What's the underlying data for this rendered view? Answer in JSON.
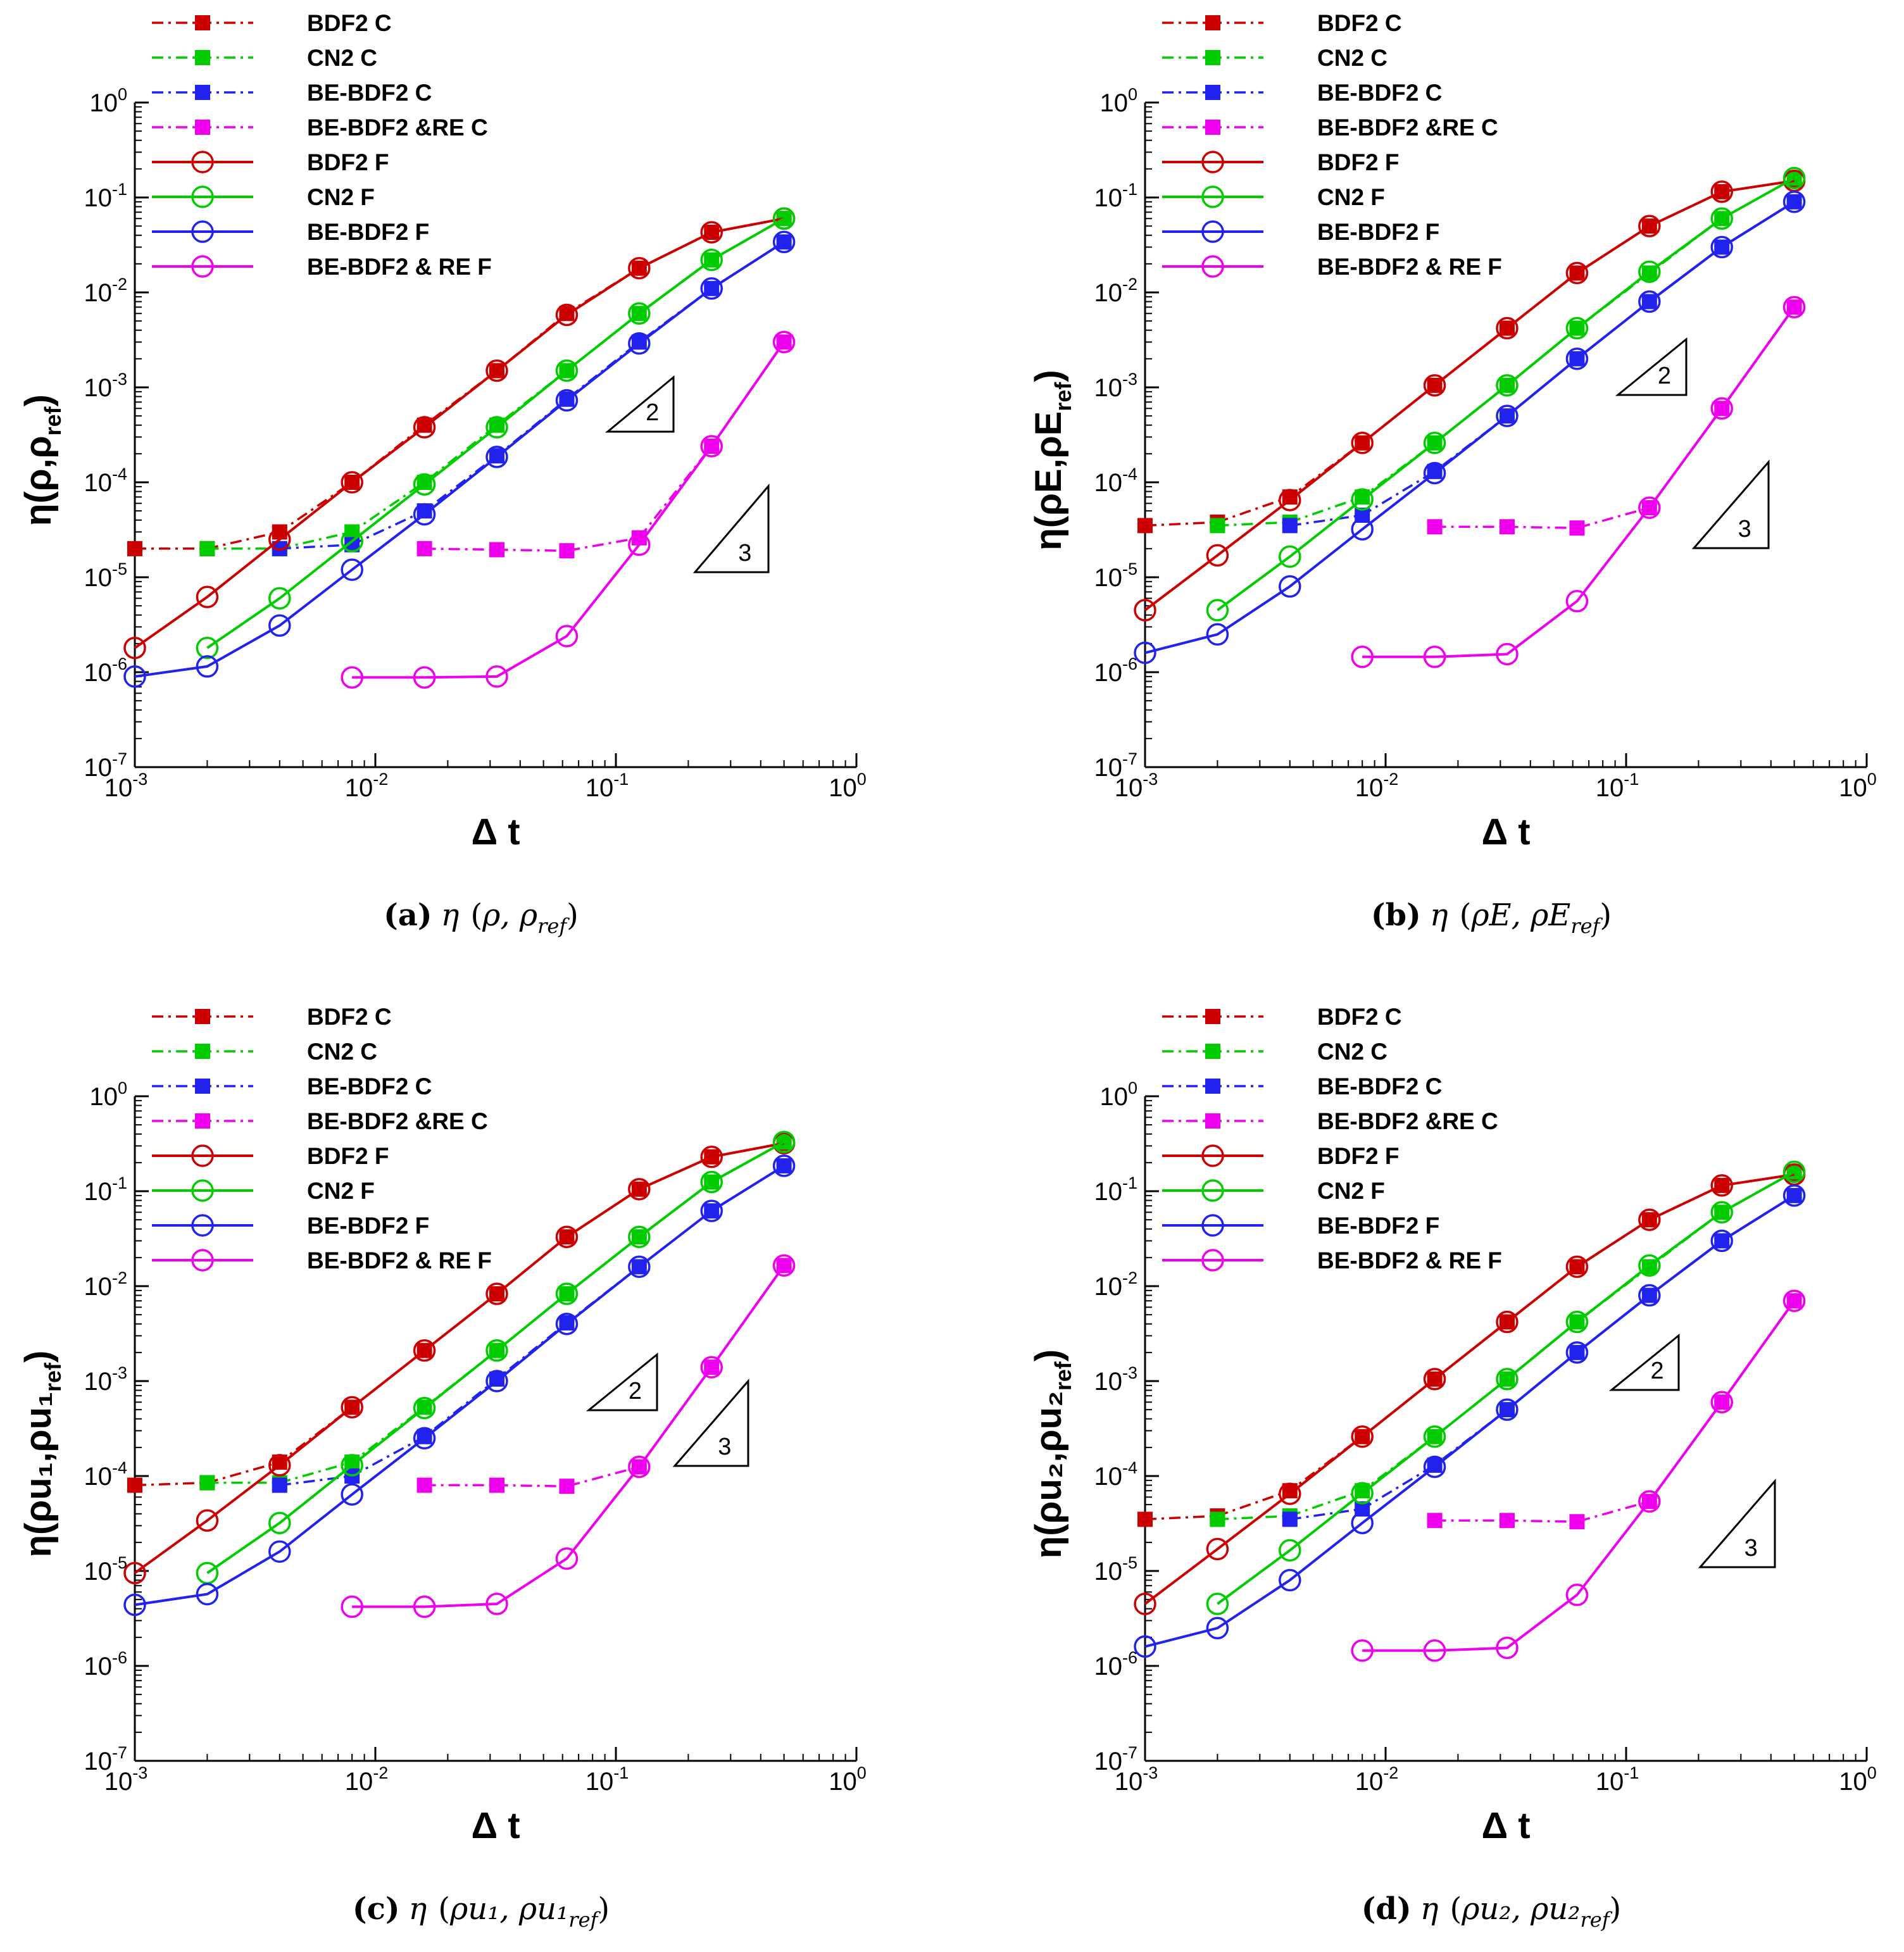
{
  "figure": {
    "legend_labels": [
      "BDF2 C",
      "CN2 C",
      "BE-BDF2 C",
      "BE-BDF2 &RE C",
      "BDF2 F",
      "CN2 F",
      "BE-BDF2 F",
      "BE-BDF2 & RE F"
    ],
    "xlabel": "Δ t",
    "x_tick_exponents": [
      "-3",
      "-2",
      "-1",
      "0"
    ],
    "y_tick_exponents": [
      "0",
      "-1",
      "-2",
      "-3",
      "-4",
      "-5",
      "-6",
      "-7"
    ],
    "tick_base": "10",
    "colors": {
      "BDF2": "#cc0000",
      "CN2": "#00cc00",
      "BE-BDF2": "#2222ee",
      "RE": "#ee00ee"
    }
  },
  "chart_data": [
    {
      "id": "a",
      "type": "line",
      "log_x": true,
      "log_y": true,
      "xlim": [
        0.001,
        1
      ],
      "ylim": [
        1e-07,
        1
      ],
      "caption_letter": "(a)",
      "caption_eta": "η",
      "caption_text": "ρ, ρ",
      "caption_sub": "ref",
      "ylabel_main": "η(ρ,ρ",
      "ylabel_sub": "ref",
      "ylabel_tail": ")",
      "x": [
        0.001,
        0.002,
        0.004,
        0.008,
        0.016,
        0.032,
        0.0625,
        0.125,
        0.25,
        0.5
      ],
      "series": [
        {
          "name": "BDF2 C",
          "style": "coarse",
          "color_key": "BDF2",
          "x": [
            0.001,
            0.002,
            0.004,
            0.008,
            0.016,
            0.032,
            0.0625,
            0.125,
            0.25,
            0.5
          ],
          "values": [
            2e-05,
            2e-05,
            3e-05,
            0.0001,
            0.0004,
            0.0015,
            0.006,
            0.018,
            0.043,
            0.06
          ]
        },
        {
          "name": "CN2 C",
          "style": "coarse",
          "color_key": "CN2",
          "x": [
            0.002,
            0.004,
            0.008,
            0.016,
            0.032,
            0.0625,
            0.125,
            0.25,
            0.5
          ],
          "values": [
            2e-05,
            2e-05,
            3e-05,
            0.0001,
            0.0004,
            0.0015,
            0.006,
            0.022,
            0.06
          ]
        },
        {
          "name": "BE-BDF2 C",
          "style": "coarse",
          "color_key": "BE-BDF2",
          "x": [
            0.004,
            0.008,
            0.016,
            0.032,
            0.0625,
            0.125,
            0.25,
            0.5
          ],
          "values": [
            2e-05,
            2.2e-05,
            5e-05,
            0.00019,
            0.00075,
            0.003,
            0.011,
            0.034
          ]
        },
        {
          "name": "BE-BDF2 &RE C",
          "style": "coarse",
          "color_key": "RE",
          "x": [
            0.016,
            0.032,
            0.0625,
            0.125,
            0.25,
            0.5
          ],
          "values": [
            2e-05,
            1.95e-05,
            1.9e-05,
            2.6e-05,
            0.00024,
            0.003
          ]
        },
        {
          "name": "BDF2 F",
          "style": "fine",
          "color_key": "BDF2",
          "x": [
            0.001,
            0.002,
            0.004,
            0.008,
            0.016,
            0.032,
            0.0625,
            0.125,
            0.25,
            0.5
          ],
          "values": [
            1.8e-06,
            6.2e-06,
            2.5e-05,
            0.0001,
            0.00038,
            0.0015,
            0.0058,
            0.018,
            0.043,
            0.06
          ]
        },
        {
          "name": "CN2 F",
          "style": "fine",
          "color_key": "CN2",
          "x": [
            0.002,
            0.004,
            0.008,
            0.016,
            0.032,
            0.0625,
            0.125,
            0.25,
            0.5
          ],
          "values": [
            1.8e-06,
            6e-06,
            2.4e-05,
            9.5e-05,
            0.00038,
            0.0015,
            0.006,
            0.022,
            0.06
          ]
        },
        {
          "name": "BE-BDF2 F",
          "style": "fine",
          "color_key": "BE-BDF2",
          "x": [
            0.001,
            0.002,
            0.004,
            0.008,
            0.016,
            0.032,
            0.0625,
            0.125,
            0.25,
            0.5
          ],
          "values": [
            9e-07,
            1.15e-06,
            3.1e-06,
            1.2e-05,
            4.6e-05,
            0.000185,
            0.00073,
            0.0029,
            0.011,
            0.034
          ]
        },
        {
          "name": "BE-BDF2 & RE F",
          "style": "fine",
          "color_key": "RE",
          "x": [
            0.008,
            0.016,
            0.032,
            0.0625,
            0.125,
            0.25,
            0.5
          ],
          "values": [
            8.8e-07,
            8.8e-07,
            9e-07,
            2.4e-06,
            2.2e-05,
            0.00024,
            0.003
          ]
        }
      ],
      "slope_labels": [
        "2",
        "3"
      ]
    },
    {
      "id": "b",
      "type": "line",
      "log_x": true,
      "log_y": true,
      "xlim": [
        0.001,
        1
      ],
      "ylim": [
        1e-07,
        1
      ],
      "caption_letter": "(b)",
      "caption_eta": "η",
      "caption_text": "ρE, ρE",
      "caption_sub": "ref",
      "ylabel_main": "η(ρE,ρE",
      "ylabel_sub": "ref",
      "ylabel_tail": ")",
      "x": [
        0.001,
        0.002,
        0.004,
        0.008,
        0.016,
        0.032,
        0.0625,
        0.125,
        0.25,
        0.5
      ],
      "series": [
        {
          "name": "BDF2 C",
          "style": "coarse",
          "color_key": "BDF2",
          "x": [
            0.001,
            0.002,
            0.004,
            0.008,
            0.016,
            0.032,
            0.0625,
            0.125,
            0.25,
            0.5
          ],
          "values": [
            3.5e-05,
            3.8e-05,
            7e-05,
            0.00026,
            0.00105,
            0.0042,
            0.016,
            0.05,
            0.115,
            0.15
          ]
        },
        {
          "name": "CN2 C",
          "style": "coarse",
          "color_key": "CN2",
          "x": [
            0.002,
            0.004,
            0.008,
            0.016,
            0.032,
            0.0625,
            0.125,
            0.25,
            0.5
          ],
          "values": [
            3.5e-05,
            3.8e-05,
            7e-05,
            0.00026,
            0.00105,
            0.0042,
            0.016,
            0.06,
            0.16
          ]
        },
        {
          "name": "BE-BDF2 C",
          "style": "coarse",
          "color_key": "BE-BDF2",
          "x": [
            0.004,
            0.008,
            0.016,
            0.032,
            0.0625,
            0.125,
            0.25,
            0.5
          ],
          "values": [
            3.5e-05,
            4.5e-05,
            0.00013,
            0.0005,
            0.002,
            0.008,
            0.03,
            0.09
          ]
        },
        {
          "name": "BE-BDF2 &RE C",
          "style": "coarse",
          "color_key": "RE",
          "x": [
            0.016,
            0.032,
            0.0625,
            0.125,
            0.25,
            0.5
          ],
          "values": [
            3.4e-05,
            3.4e-05,
            3.3e-05,
            5.4e-05,
            0.0006,
            0.007
          ]
        },
        {
          "name": "BDF2 F",
          "style": "fine",
          "color_key": "BDF2",
          "x": [
            0.001,
            0.002,
            0.004,
            0.008,
            0.016,
            0.032,
            0.0625,
            0.125,
            0.25,
            0.5
          ],
          "values": [
            4.5e-06,
            1.7e-05,
            6.5e-05,
            0.00026,
            0.00105,
            0.0042,
            0.016,
            0.05,
            0.115,
            0.15
          ]
        },
        {
          "name": "CN2 F",
          "style": "fine",
          "color_key": "CN2",
          "x": [
            0.002,
            0.004,
            0.008,
            0.016,
            0.032,
            0.0625,
            0.125,
            0.25,
            0.5
          ],
          "values": [
            4.5e-06,
            1.65e-05,
            6.6e-05,
            0.00026,
            0.00105,
            0.0042,
            0.0165,
            0.06,
            0.16
          ]
        },
        {
          "name": "BE-BDF2 F",
          "style": "fine",
          "color_key": "BE-BDF2",
          "x": [
            0.001,
            0.002,
            0.004,
            0.008,
            0.016,
            0.032,
            0.0625,
            0.125,
            0.25,
            0.5
          ],
          "values": [
            1.6e-06,
            2.5e-06,
            8e-06,
            3.2e-05,
            0.000125,
            0.0005,
            0.002,
            0.008,
            0.03,
            0.09
          ]
        },
        {
          "name": "BE-BDF2 & RE F",
          "style": "fine",
          "color_key": "RE",
          "x": [
            0.008,
            0.016,
            0.032,
            0.0625,
            0.125,
            0.25,
            0.5
          ],
          "values": [
            1.45e-06,
            1.45e-06,
            1.55e-06,
            5.6e-06,
            5.4e-05,
            0.0006,
            0.007
          ]
        }
      ],
      "slope_labels": [
        "2",
        "3"
      ]
    },
    {
      "id": "c",
      "type": "line",
      "log_x": true,
      "log_y": true,
      "xlim": [
        0.001,
        1
      ],
      "ylim": [
        1e-07,
        1
      ],
      "caption_letter": "(c)",
      "caption_eta": "η",
      "caption_text": "ρu₁, ρu₁",
      "caption_sub": "ref",
      "ylabel_main": "η(ρu₁,ρu₁",
      "ylabel_sub": "ref",
      "ylabel_tail": ")",
      "x": [
        0.001,
        0.002,
        0.004,
        0.008,
        0.016,
        0.032,
        0.0625,
        0.125,
        0.25,
        0.5
      ],
      "series": [
        {
          "name": "BDF2 C",
          "style": "coarse",
          "color_key": "BDF2",
          "x": [
            0.001,
            0.002,
            0.004,
            0.008,
            0.016,
            0.032,
            0.0625,
            0.125,
            0.25,
            0.5
          ],
          "values": [
            8e-05,
            8.5e-05,
            0.00014,
            0.00053,
            0.0021,
            0.0083,
            0.033,
            0.105,
            0.23,
            0.32
          ]
        },
        {
          "name": "CN2 C",
          "style": "coarse",
          "color_key": "CN2",
          "x": [
            0.002,
            0.004,
            0.008,
            0.016,
            0.032,
            0.0625,
            0.125,
            0.25,
            0.5
          ],
          "values": [
            8.5e-05,
            8.5e-05,
            0.00014,
            0.00053,
            0.0021,
            0.0083,
            0.033,
            0.125,
            0.33
          ]
        },
        {
          "name": "BE-BDF2 C",
          "style": "coarse",
          "color_key": "BE-BDF2",
          "x": [
            0.004,
            0.008,
            0.016,
            0.032,
            0.0625,
            0.125,
            0.25,
            0.5
          ],
          "values": [
            8e-05,
            0.0001,
            0.00026,
            0.00105,
            0.0041,
            0.016,
            0.062,
            0.185
          ]
        },
        {
          "name": "BE-BDF2 &RE C",
          "style": "coarse",
          "color_key": "RE",
          "x": [
            0.016,
            0.032,
            0.0625,
            0.125,
            0.25,
            0.5
          ],
          "values": [
            8e-05,
            8e-05,
            7.8e-05,
            0.000125,
            0.0014,
            0.0165
          ]
        },
        {
          "name": "BDF2 F",
          "style": "fine",
          "color_key": "BDF2",
          "x": [
            0.001,
            0.002,
            0.004,
            0.008,
            0.016,
            0.032,
            0.0625,
            0.125,
            0.25,
            0.5
          ],
          "values": [
            9.5e-06,
            3.4e-05,
            0.00013,
            0.00053,
            0.0021,
            0.0083,
            0.033,
            0.105,
            0.23,
            0.32
          ]
        },
        {
          "name": "CN2 F",
          "style": "fine",
          "color_key": "CN2",
          "x": [
            0.002,
            0.004,
            0.008,
            0.016,
            0.032,
            0.0625,
            0.125,
            0.25,
            0.5
          ],
          "values": [
            9.5e-06,
            3.2e-05,
            0.00013,
            0.00052,
            0.0021,
            0.0083,
            0.033,
            0.125,
            0.33
          ]
        },
        {
          "name": "BE-BDF2 F",
          "style": "fine",
          "color_key": "BE-BDF2",
          "x": [
            0.001,
            0.002,
            0.004,
            0.008,
            0.016,
            0.032,
            0.0625,
            0.125,
            0.25,
            0.5
          ],
          "values": [
            4.4e-06,
            5.7e-06,
            1.6e-05,
            6.4e-05,
            0.00025,
            0.001,
            0.004,
            0.016,
            0.062,
            0.185
          ]
        },
        {
          "name": "BE-BDF2 & RE F",
          "style": "fine",
          "color_key": "RE",
          "x": [
            0.008,
            0.016,
            0.032,
            0.0625,
            0.125,
            0.25,
            0.5
          ],
          "values": [
            4.2e-06,
            4.2e-06,
            4.5e-06,
            1.35e-05,
            0.000125,
            0.0014,
            0.0165
          ]
        }
      ],
      "slope_labels": [
        "2",
        "3"
      ]
    },
    {
      "id": "d",
      "type": "line",
      "log_x": true,
      "log_y": true,
      "xlim": [
        0.001,
        1
      ],
      "ylim": [
        1e-07,
        1
      ],
      "caption_letter": "(d)",
      "caption_eta": "η",
      "caption_text": "ρu₂, ρu₂",
      "caption_sub": "ref",
      "ylabel_main": "η(ρu₂,ρu₂",
      "ylabel_sub": "ref",
      "ylabel_tail": ")",
      "x": [
        0.001,
        0.002,
        0.004,
        0.008,
        0.016,
        0.032,
        0.0625,
        0.125,
        0.25,
        0.5
      ],
      "series": [
        {
          "name": "BDF2 C",
          "style": "coarse",
          "color_key": "BDF2",
          "x": [
            0.001,
            0.002,
            0.004,
            0.008,
            0.016,
            0.032,
            0.0625,
            0.125,
            0.25,
            0.5
          ],
          "values": [
            3.5e-05,
            3.8e-05,
            7e-05,
            0.00026,
            0.00105,
            0.0042,
            0.016,
            0.05,
            0.115,
            0.15
          ]
        },
        {
          "name": "CN2 C",
          "style": "coarse",
          "color_key": "CN2",
          "x": [
            0.002,
            0.004,
            0.008,
            0.016,
            0.032,
            0.0625,
            0.125,
            0.25,
            0.5
          ],
          "values": [
            3.5e-05,
            3.8e-05,
            7e-05,
            0.00026,
            0.00105,
            0.0042,
            0.016,
            0.06,
            0.16
          ]
        },
        {
          "name": "BE-BDF2 C",
          "style": "coarse",
          "color_key": "BE-BDF2",
          "x": [
            0.004,
            0.008,
            0.016,
            0.032,
            0.0625,
            0.125,
            0.25,
            0.5
          ],
          "values": [
            3.5e-05,
            4.5e-05,
            0.00013,
            0.0005,
            0.002,
            0.008,
            0.03,
            0.09
          ]
        },
        {
          "name": "BE-BDF2 &RE C",
          "style": "coarse",
          "color_key": "RE",
          "x": [
            0.016,
            0.032,
            0.0625,
            0.125,
            0.25,
            0.5
          ],
          "values": [
            3.4e-05,
            3.4e-05,
            3.3e-05,
            5.4e-05,
            0.0006,
            0.007
          ]
        },
        {
          "name": "BDF2 F",
          "style": "fine",
          "color_key": "BDF2",
          "x": [
            0.001,
            0.002,
            0.004,
            0.008,
            0.016,
            0.032,
            0.0625,
            0.125,
            0.25,
            0.5
          ],
          "values": [
            4.5e-06,
            1.7e-05,
            6.5e-05,
            0.00026,
            0.00105,
            0.0042,
            0.016,
            0.05,
            0.115,
            0.15
          ]
        },
        {
          "name": "CN2 F",
          "style": "fine",
          "color_key": "CN2",
          "x": [
            0.002,
            0.004,
            0.008,
            0.016,
            0.032,
            0.0625,
            0.125,
            0.25,
            0.5
          ],
          "values": [
            4.5e-06,
            1.65e-05,
            6.6e-05,
            0.00026,
            0.00105,
            0.0042,
            0.0165,
            0.06,
            0.16
          ]
        },
        {
          "name": "BE-BDF2 F",
          "style": "fine",
          "color_key": "BE-BDF2",
          "x": [
            0.001,
            0.002,
            0.004,
            0.008,
            0.016,
            0.032,
            0.0625,
            0.125,
            0.25,
            0.5
          ],
          "values": [
            1.6e-06,
            2.5e-06,
            8e-06,
            3.2e-05,
            0.000125,
            0.0005,
            0.002,
            0.008,
            0.03,
            0.09
          ]
        },
        {
          "name": "BE-BDF2 & RE F",
          "style": "fine",
          "color_key": "RE",
          "x": [
            0.008,
            0.016,
            0.032,
            0.0625,
            0.125,
            0.25,
            0.5
          ],
          "values": [
            1.45e-06,
            1.45e-06,
            1.55e-06,
            5.6e-06,
            5.4e-05,
            0.0006,
            0.007
          ]
        }
      ],
      "slope_labels": [
        "2",
        "3"
      ]
    }
  ]
}
